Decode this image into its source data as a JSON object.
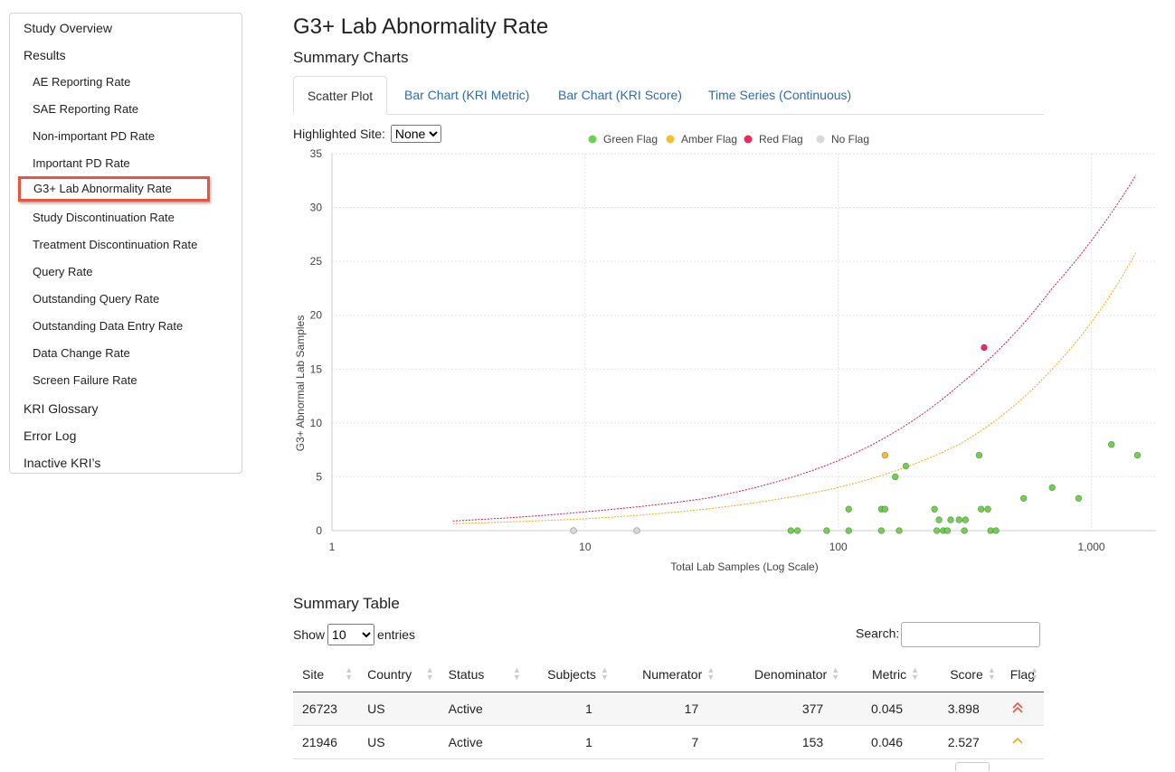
{
  "sidebar": {
    "items": [
      {
        "label": "Study Overview",
        "level": 0
      },
      {
        "label": "Results",
        "level": 0
      },
      {
        "label": "AE Reporting Rate",
        "level": 1
      },
      {
        "label": "SAE Reporting Rate",
        "level": 1
      },
      {
        "label": "Non-important PD Rate",
        "level": 1
      },
      {
        "label": "Important PD Rate",
        "level": 1
      },
      {
        "label": "G3+ Lab Abnormality Rate",
        "level": 1,
        "active": true
      },
      {
        "label": "Study Discontinuation Rate",
        "level": 1
      },
      {
        "label": "Treatment Discontinuation Rate",
        "level": 1
      },
      {
        "label": "Query Rate",
        "level": 1
      },
      {
        "label": "Outstanding Query Rate",
        "level": 1
      },
      {
        "label": "Outstanding Data Entry Rate",
        "level": 1
      },
      {
        "label": "Data Change Rate",
        "level": 1
      },
      {
        "label": "Screen Failure Rate",
        "level": 1
      },
      {
        "label": "KRI Glossary",
        "level": 0
      },
      {
        "label": "Error Log",
        "level": 0
      },
      {
        "label": "Inactive KRI’s",
        "level": 0
      }
    ]
  },
  "page_title": "G3+ Lab Abnormality Rate",
  "charts_heading": "Summary Charts",
  "tabs": [
    {
      "label": "Scatter Plot",
      "active": true
    },
    {
      "label": "Bar Chart (KRI Metric)"
    },
    {
      "label": "Bar Chart (KRI Score)"
    },
    {
      "label": "Time Series (Continuous)"
    }
  ],
  "highlight": {
    "label": "Highlighted Site:",
    "selected": "None"
  },
  "chart_data": {
    "type": "scatter",
    "xlabel": "Total Lab Samples (Log Scale)",
    "ylabel": "G3+ Abnormal Lab Samples",
    "x_scale": "log",
    "xlim": [
      1,
      1800
    ],
    "ylim": [
      0,
      35
    ],
    "x_ticks": [
      {
        "value": 1,
        "label": "1"
      },
      {
        "value": 10,
        "label": "10"
      },
      {
        "value": 100,
        "label": "100"
      },
      {
        "value": 1000,
        "label": "1,000"
      }
    ],
    "y_ticks": [
      0,
      5,
      10,
      15,
      20,
      25,
      30,
      35
    ],
    "grid": true,
    "legend_position": "top",
    "legend": [
      {
        "name": "Green Flag",
        "color": "#6fd14d"
      },
      {
        "name": "Amber Flag",
        "color": "#f6c028"
      },
      {
        "name": "Red Flag",
        "color": "#ee2a5c"
      },
      {
        "name": "No Flag",
        "color": "#d9d9d9"
      }
    ],
    "series": [
      {
        "name": "Green Flag",
        "color": "#6fd14d",
        "points": [
          [
            65,
            0
          ],
          [
            69,
            0
          ],
          [
            90,
            0
          ],
          [
            110,
            0
          ],
          [
            110,
            2
          ],
          [
            148,
            0
          ],
          [
            148,
            2
          ],
          [
            153,
            2
          ],
          [
            168,
            5
          ],
          [
            174,
            0
          ],
          [
            185,
            6
          ],
          [
            240,
            2
          ],
          [
            245,
            0
          ],
          [
            250,
            1
          ],
          [
            260,
            0
          ],
          [
            270,
            0
          ],
          [
            278,
            1
          ],
          [
            300,
            1
          ],
          [
            315,
            0
          ],
          [
            318,
            1
          ],
          [
            360,
            7
          ],
          [
            367,
            2
          ],
          [
            390,
            2
          ],
          [
            400,
            0
          ],
          [
            420,
            0
          ],
          [
            540,
            3
          ],
          [
            700,
            4
          ],
          [
            890,
            3
          ],
          [
            1200,
            8
          ],
          [
            1520,
            7
          ]
        ]
      },
      {
        "name": "Amber Flag",
        "color": "#f6c028",
        "points": [
          [
            153,
            7
          ]
        ]
      },
      {
        "name": "Red Flag",
        "color": "#ee2a5c",
        "points": [
          [
            377,
            17
          ]
        ]
      },
      {
        "name": "No Flag",
        "color": "#d9d9d9",
        "points": [
          [
            9,
            0
          ],
          [
            16,
            0
          ]
        ]
      }
    ],
    "thresholds": [
      {
        "color": "#d4145a",
        "points": [
          [
            3,
            0.9
          ],
          [
            10,
            1.75
          ],
          [
            30,
            3
          ],
          [
            100,
            6.5
          ],
          [
            300,
            13.5
          ],
          [
            700,
            22.5
          ],
          [
            1500,
            33
          ]
        ]
      },
      {
        "color": "#f3a712",
        "points": [
          [
            3,
            0.65
          ],
          [
            10,
            1.1
          ],
          [
            30,
            2
          ],
          [
            100,
            4
          ],
          [
            300,
            8
          ],
          [
            700,
            15
          ],
          [
            1500,
            25.8
          ]
        ]
      }
    ]
  },
  "table_heading": "Summary Table",
  "show_entries": {
    "prefix": "Show",
    "value": "10",
    "suffix": "entries"
  },
  "search": {
    "label": "Search:",
    "value": ""
  },
  "table": {
    "columns": [
      "Site",
      "Country",
      "Status",
      "Subjects",
      "Numerator",
      "Denominator",
      "Metric",
      "Score",
      "Flag"
    ],
    "rows": [
      {
        "site": "26723",
        "country": "US",
        "status": "Active",
        "subjects": "1",
        "numerator": "17",
        "denominator": "377",
        "metric": "0.045",
        "score": "3.898",
        "flag": "red"
      },
      {
        "site": "21946",
        "country": "US",
        "status": "Active",
        "subjects": "1",
        "numerator": "7",
        "denominator": "153",
        "metric": "0.046",
        "score": "2.527",
        "flag": "amber"
      }
    ]
  }
}
